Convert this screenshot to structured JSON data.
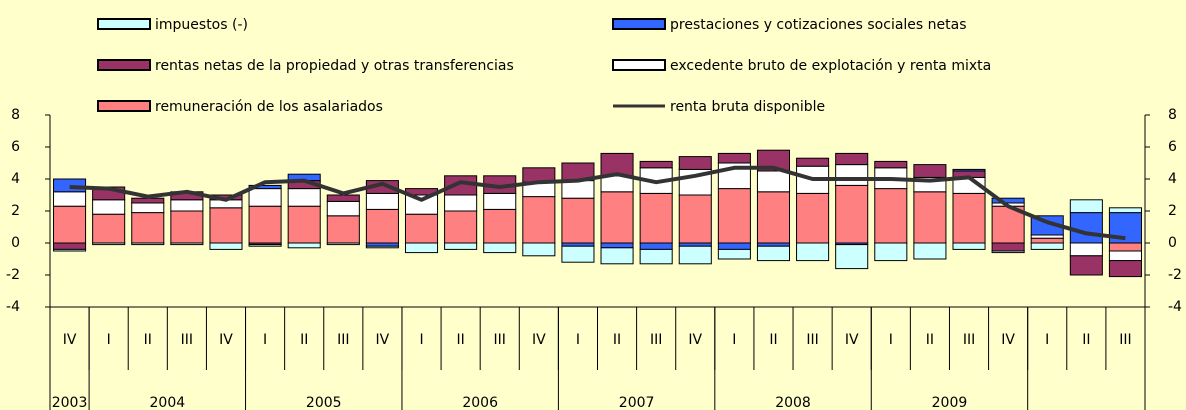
{
  "chart_data": {
    "type": "stacked_bar_line",
    "categories": [
      "IV",
      "I",
      "II",
      "III",
      "IV",
      "I",
      "II",
      "III",
      "IV",
      "I",
      "II",
      "III",
      "IV",
      "I",
      "II",
      "III",
      "IV",
      "I",
      "II",
      "III",
      "IV",
      "I",
      "II",
      "III",
      "IV",
      "I",
      "II",
      "III"
    ],
    "years": [
      "2003",
      "2004",
      "2005",
      "2006",
      "2007",
      "2008",
      "2009"
    ],
    "ylim": [
      -4,
      8
    ],
    "yticks": [
      -4,
      -2,
      0,
      2,
      4,
      6,
      8
    ],
    "grid": false,
    "series": [
      {
        "name": "remuneración de los asalariados",
        "type": "bar",
        "color": "#ff8080",
        "values": [
          2.3,
          1.8,
          1.9,
          2.0,
          2.2,
          2.3,
          2.3,
          1.7,
          2.1,
          1.8,
          2.0,
          2.1,
          2.9,
          2.8,
          3.2,
          3.1,
          3.0,
          3.4,
          3.2,
          3.1,
          3.6,
          3.4,
          3.2,
          3.1,
          2.3,
          0.3,
          0.0,
          -0.5
        ]
      },
      {
        "name": "excedente bruto de explotación  y renta mixta",
        "type": "bar",
        "color": "#ffffff",
        "values": [
          0.9,
          0.9,
          0.6,
          0.7,
          0.5,
          1.1,
          1.1,
          0.9,
          1.0,
          1.2,
          1.0,
          1.0,
          0.9,
          1.1,
          1.0,
          1.6,
          1.6,
          1.6,
          1.3,
          1.7,
          1.3,
          1.3,
          0.9,
          1.0,
          0.2,
          0.2,
          -0.8,
          -0.6
        ]
      },
      {
        "name": "rentas netas de la propiedad  y otras transferencias",
        "type": "bar",
        "color": "#993366",
        "values": [
          -0.4,
          0.8,
          0.3,
          0.5,
          0.3,
          -0.1,
          0.5,
          0.4,
          0.8,
          0.4,
          1.2,
          1.1,
          0.9,
          1.1,
          1.4,
          0.4,
          0.8,
          0.6,
          1.3,
          0.5,
          0.7,
          0.4,
          0.8,
          0.4,
          -0.5,
          0.0,
          -1.2,
          -1.0
        ]
      },
      {
        "name": "prestaciones y cotizaciones sociales netas",
        "type": "bar",
        "color": "#3366ff",
        "values": [
          0.8,
          0.0,
          0.0,
          0.0,
          0.0,
          0.2,
          0.4,
          0.0,
          -0.2,
          0.0,
          0.0,
          0.0,
          0.0,
          -0.2,
          -0.3,
          -0.4,
          -0.2,
          -0.4,
          -0.2,
          0.0,
          -0.1,
          0.0,
          0.0,
          0.1,
          0.3,
          1.2,
          1.9,
          1.9
        ]
      },
      {
        "name": "impuestos (-)",
        "type": "bar",
        "color": "#ccffff",
        "values": [
          -0.1,
          -0.1,
          -0.1,
          -0.1,
          -0.4,
          -0.1,
          -0.3,
          -0.1,
          -0.1,
          -0.6,
          -0.4,
          -0.6,
          -0.8,
          -1.0,
          -1.0,
          -0.9,
          -1.1,
          -0.6,
          -0.9,
          -1.1,
          -1.5,
          -1.1,
          -1.0,
          -0.4,
          -0.1,
          -0.4,
          0.8,
          0.3
        ]
      },
      {
        "name": "renta bruta disponible",
        "type": "line",
        "color": "#333333",
        "values": [
          3.5,
          3.4,
          2.9,
          3.2,
          2.7,
          3.8,
          3.9,
          3.1,
          3.7,
          2.7,
          3.8,
          3.5,
          3.8,
          3.9,
          4.3,
          3.8,
          4.2,
          4.7,
          4.7,
          4.0,
          4.0,
          4.0,
          3.9,
          4.1,
          2.3,
          1.3,
          0.6,
          0.3
        ]
      }
    ]
  }
}
